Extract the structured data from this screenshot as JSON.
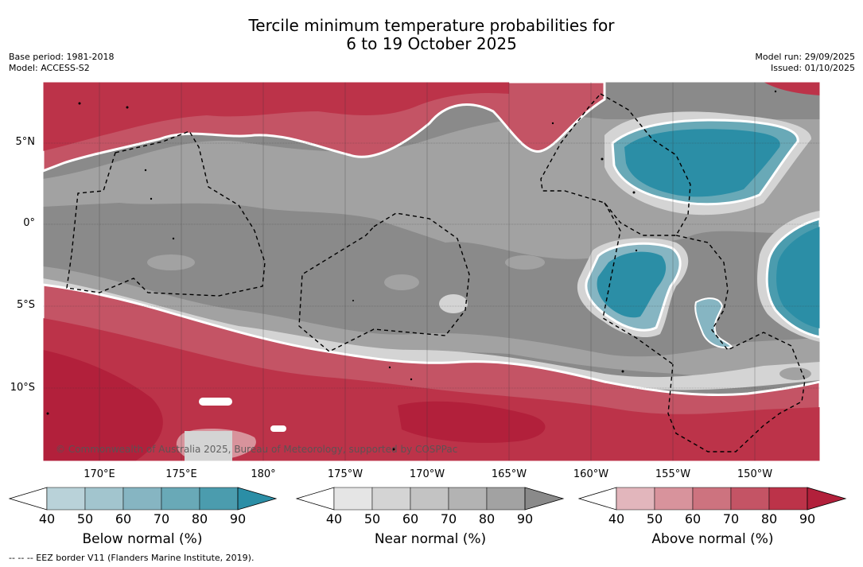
{
  "header": {
    "title_line1": "Tercile minimum temperature probabilities for",
    "title_line2": "6 to 19 October 2025",
    "base_period": "Base period: 1981-2018",
    "model": "Model: ACCESS-S2",
    "model_run": "Model run: 29/09/2025",
    "issued": "Issued: 01/10/2025"
  },
  "map": {
    "lat_labels": [
      "5°N",
      "0°",
      "5°S",
      "10°S"
    ],
    "lon_labels": [
      "170°E",
      "175°E",
      "180°",
      "175°W",
      "170°W",
      "165°W",
      "160°W",
      "155°W",
      "150°W"
    ],
    "copyright": "© Commonwealth of Australia 2025, Bureau of Meteorology, supported by COSPPac",
    "colors": {
      "near_grey": "#8a8a8a",
      "above_red": "#bd3548",
      "below_teal": "#2e8fa6"
    }
  },
  "legend": {
    "below": {
      "title": "Below normal (%)",
      "ticks": [
        "40",
        "50",
        "60",
        "70",
        "80",
        "90"
      ],
      "colors": [
        "#ffffff",
        "#b9d2d9",
        "#a2c5ce",
        "#86b5c2",
        "#69a9b7",
        "#4b9cae",
        "#2b8ea6"
      ]
    },
    "near": {
      "title": "Near normal (%)",
      "ticks": [
        "40",
        "50",
        "60",
        "70",
        "80",
        "90"
      ],
      "colors": [
        "#ffffff",
        "#e5e5e5",
        "#d4d4d4",
        "#c3c3c3",
        "#b3b3b3",
        "#a2a2a2",
        "#8a8a8a"
      ]
    },
    "above": {
      "title": "Above normal (%)",
      "ticks": [
        "40",
        "50",
        "60",
        "70",
        "80",
        "90"
      ],
      "colors": [
        "#ffffff",
        "#e2b6bc",
        "#d8939c",
        "#cd737f",
        "#c45465",
        "#bc3349",
        "#b2203b"
      ]
    }
  },
  "footnote": "--  --  -- EEZ border V11 (Flanders Marine Institute, 2019)."
}
